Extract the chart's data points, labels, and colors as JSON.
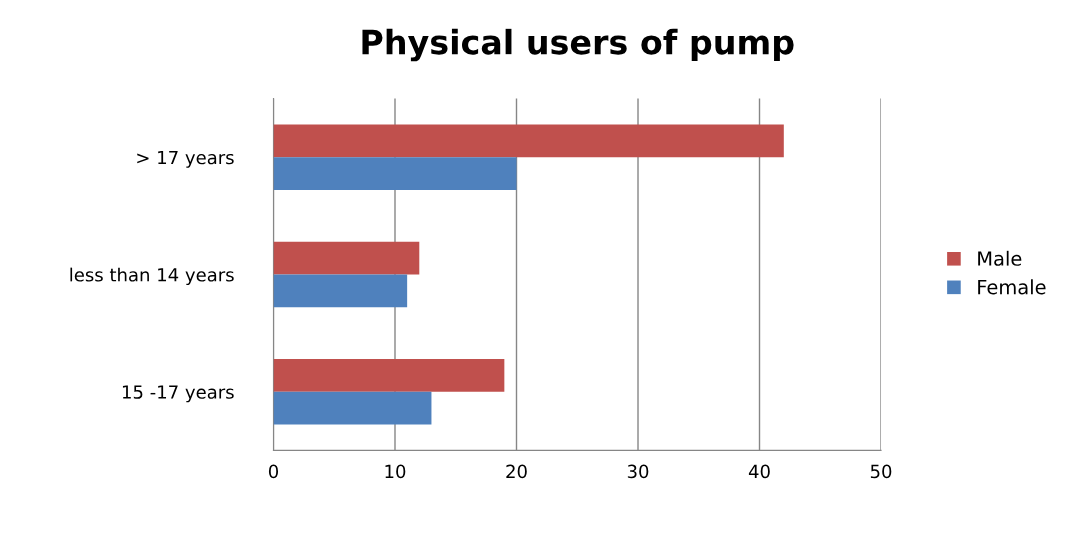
{
  "chart_data": {
    "type": "bar",
    "orientation": "horizontal",
    "title": "Physical users of pump",
    "categories": [
      "> 17 years",
      "less than 14 years",
      "15 -17 years"
    ],
    "series": [
      {
        "name": "Male",
        "color": "#c0504d",
        "values": [
          42,
          12,
          19
        ]
      },
      {
        "name": "Female",
        "color": "#4f81bd",
        "values": [
          20,
          11,
          13
        ]
      }
    ],
    "xlim": [
      0,
      50
    ],
    "xticks": [
      0,
      10,
      20,
      30,
      40,
      50
    ],
    "grid": "x",
    "legend": "right"
  }
}
